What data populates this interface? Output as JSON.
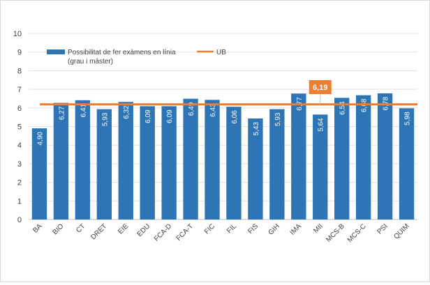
{
  "chart_data": {
    "type": "bar",
    "title": "",
    "xlabel": "",
    "ylabel": "",
    "ylim": [
      0,
      10
    ],
    "yticks": [
      "0",
      "1",
      "2",
      "3",
      "4",
      "5",
      "6",
      "7",
      "8",
      "9",
      "10"
    ],
    "grid": true,
    "legend_position": "top-left",
    "categories": [
      "BA",
      "BIO",
      "CT",
      "DRET",
      "EIE",
      "EDU",
      "FCA-D",
      "FCA-T",
      "FIC",
      "FIL",
      "FIS",
      "GIH",
      "IMA",
      "MII",
      "MCS-B",
      "MCS-C",
      "PSI",
      "QUIM"
    ],
    "series": [
      {
        "name": "Possibilitat de fer exàmens en línia (grau i màster)",
        "type": "bar",
        "color": "#2e75b6",
        "values": [
          4.9,
          6.27,
          6.41,
          5.93,
          6.32,
          6.09,
          6.09,
          6.49,
          6.43,
          6.06,
          5.43,
          5.93,
          6.77,
          5.64,
          6.54,
          6.68,
          6.78,
          5.98
        ],
        "labels": [
          "4,90",
          "6,27",
          "6,41",
          "5,93",
          "6,32",
          "6,09",
          "6,09",
          "6,49",
          "6,43",
          "6,06",
          "5,43",
          "5,93",
          "6,77",
          "5,64",
          "6,54",
          "6,68",
          "6,78",
          "5,98"
        ]
      },
      {
        "name": "UB",
        "type": "line",
        "color": "#ed7d31",
        "value": 6.19,
        "label": "6,19"
      }
    ],
    "legend": {
      "bar_line1": "Possibilitat de fer exàmens en línia",
      "bar_line2": "(grau i màster)",
      "line": "UB"
    }
  }
}
